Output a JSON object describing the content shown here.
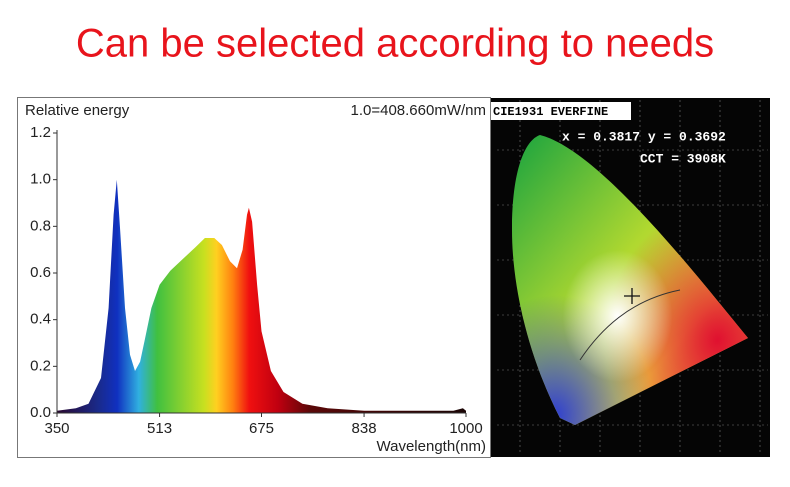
{
  "chart_data": {
    "type": "area",
    "title": "Can be selected according to needs",
    "y_label": "Relative energy",
    "x_label": "Wavelength(nm)",
    "annotation": "1.0=408.660mW/nm",
    "x": [
      350,
      380,
      400,
      420,
      432,
      440,
      445,
      450,
      458,
      466,
      474,
      482,
      490,
      500,
      513,
      530,
      550,
      570,
      585,
      600,
      612,
      625,
      636,
      645,
      652,
      655,
      660,
      668,
      675,
      690,
      710,
      740,
      780,
      838,
      900,
      980,
      995,
      1000
    ],
    "values": [
      0.01,
      0.02,
      0.04,
      0.15,
      0.45,
      0.85,
      1.0,
      0.8,
      0.45,
      0.25,
      0.18,
      0.22,
      0.32,
      0.45,
      0.55,
      0.61,
      0.66,
      0.71,
      0.75,
      0.75,
      0.72,
      0.65,
      0.62,
      0.7,
      0.85,
      0.88,
      0.82,
      0.55,
      0.35,
      0.18,
      0.09,
      0.04,
      0.02,
      0.01,
      0.01,
      0.01,
      0.02,
      0.01
    ],
    "xlim": [
      350,
      1000
    ],
    "xticks": [
      350,
      513,
      675,
      838,
      1000
    ],
    "ylim": [
      0,
      1.2
    ],
    "yticks": [
      {
        "value": 0,
        "label": "0.0"
      },
      0.2,
      0.4,
      0.6,
      0.8,
      {
        "value": 1,
        "label": "1.0"
      },
      1.2
    ]
  },
  "cie": {
    "label": "CIE1931 EVERFINE",
    "coords": "x = 0.3817 y = 0.3692",
    "cct": "CCT = 3908K"
  }
}
